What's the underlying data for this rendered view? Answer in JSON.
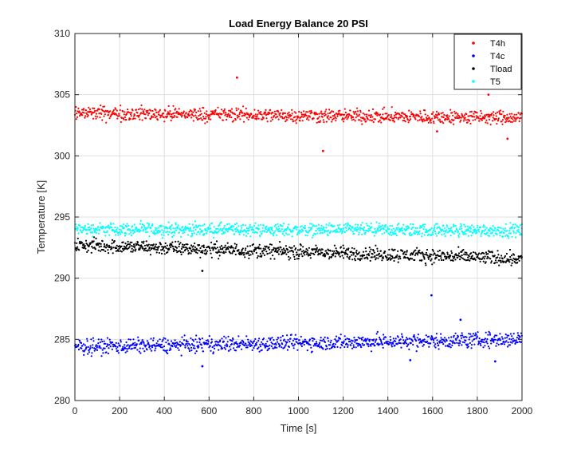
{
  "chart_data": {
    "type": "scatter",
    "title": "Load Energy Balance 20 PSI",
    "xlabel": "Time [s]",
    "ylabel": "Temperature [K]",
    "xlim": [
      0,
      2000
    ],
    "ylim": [
      280,
      310
    ],
    "xticks": [
      0,
      200,
      400,
      600,
      800,
      1000,
      1200,
      1400,
      1600,
      1800,
      2000
    ],
    "yticks": [
      280,
      285,
      290,
      295,
      300,
      305,
      310
    ],
    "grid": true,
    "legend_position": "top-right",
    "point_count_note": "dense point clouds, one point every ~2 s",
    "series": [
      {
        "name": "T4h",
        "color": "#ff0000",
        "trend": {
          "x": [
            0,
            2000
          ],
          "y": [
            303.5,
            303.1
          ]
        },
        "band_halfwidth": 0.6,
        "outliers": [
          [
            725,
            306.4
          ],
          [
            1110,
            300.4
          ],
          [
            1850,
            305.0
          ],
          [
            1935,
            301.4
          ],
          [
            1620,
            302.0
          ]
        ]
      },
      {
        "name": "T4c",
        "color": "#0000ff",
        "trend": {
          "x": [
            0,
            2000
          ],
          "y": [
            284.4,
            285.0
          ]
        },
        "band_halfwidth": 0.65,
        "outliers": [
          [
            570,
            282.8
          ],
          [
            1595,
            288.6
          ],
          [
            1725,
            286.6
          ],
          [
            1880,
            283.2
          ],
          [
            1500,
            283.3
          ]
        ]
      },
      {
        "name": "Tload",
        "color": "#000000",
        "trend": {
          "x": [
            0,
            2000
          ],
          "y": [
            292.7,
            291.6
          ]
        },
        "band_halfwidth": 0.6,
        "outliers": [
          [
            570,
            290.6
          ]
        ]
      },
      {
        "name": "T5",
        "color": "#00ffff",
        "trend": {
          "x": [
            0,
            2000
          ],
          "y": [
            294.0,
            293.9
          ]
        },
        "band_halfwidth": 0.55,
        "outliers": []
      }
    ]
  }
}
